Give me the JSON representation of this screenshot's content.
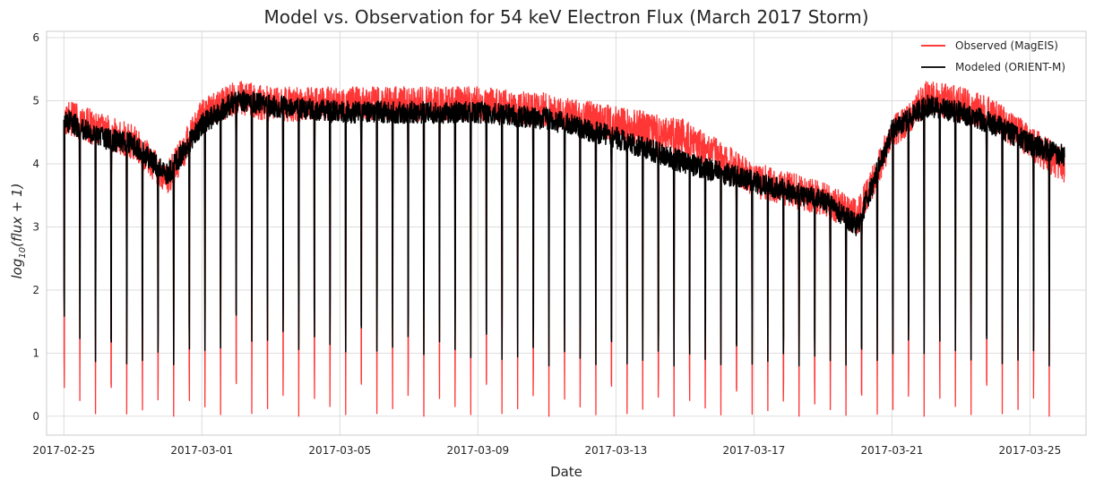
{
  "chart_data": {
    "type": "line",
    "title": "Model vs. Observation for 54 keV Electron Flux (March 2017 Storm)",
    "xlabel": "Date",
    "ylabel_prefix": "log",
    "ylabel_sub": "10",
    "ylabel_suffix": "(flux + 1)",
    "xlim": [
      "2017-02-24T12:00",
      "2017-03-26T15:00"
    ],
    "ylim": [
      -0.3,
      6.1
    ],
    "yticks": [
      0,
      1,
      2,
      3,
      4,
      5,
      6
    ],
    "xticks": [
      "2017-02-25",
      "2017-03-01",
      "2017-03-05",
      "2017-03-09",
      "2017-03-13",
      "2017-03-17",
      "2017-03-21",
      "2017-03-25"
    ],
    "grid": true,
    "legend_position": "top-right",
    "colors": {
      "observed": "#ff2020",
      "modeled": "#000000",
      "grid": "#d9d9d9",
      "frame": "#cccccc"
    },
    "series": [
      {
        "name": "Observed (MagEIS)",
        "key": "observed",
        "start": "2017-02-25",
        "end": "2017-03-26",
        "approx_orbital_dropouts": 64,
        "envelope": [
          [
            "2017-02-25",
            4.6,
            0.2
          ],
          [
            "2017-02-26",
            4.4,
            0.0
          ],
          [
            "2017-02-27",
            4.2,
            0.0
          ],
          [
            "2017-02-28",
            3.6,
            0.0
          ],
          [
            "2017-03-01",
            4.6,
            0.0
          ],
          [
            "2017-03-02",
            4.9,
            0.0
          ],
          [
            "2017-03-03",
            4.8,
            0.0
          ],
          [
            "2017-03-05",
            4.8,
            0.0
          ],
          [
            "2017-03-07",
            4.8,
            0.0
          ],
          [
            "2017-03-09",
            4.8,
            0.0
          ],
          [
            "2017-03-11",
            4.7,
            0.0
          ],
          [
            "2017-03-13",
            4.5,
            0.0
          ],
          [
            "2017-03-15",
            4.3,
            0.0
          ],
          [
            "2017-03-17",
            3.6,
            0.0
          ],
          [
            "2017-03-19",
            3.3,
            0.0
          ],
          [
            "2017-03-20",
            3.0,
            0.0
          ],
          [
            "2017-03-21",
            4.3,
            0.0
          ],
          [
            "2017-03-22",
            4.9,
            0.0
          ],
          [
            "2017-03-23",
            4.8,
            0.0
          ],
          [
            "2017-03-24",
            4.6,
            0.0
          ],
          [
            "2017-03-25",
            4.2,
            0.0
          ],
          [
            "2017-03-26",
            3.8,
            0.0
          ]
        ]
      },
      {
        "name": "Modeled (ORIENT-M)",
        "key": "modeled",
        "start": "2017-02-25",
        "end": "2017-03-26",
        "approx_orbital_dropouts": 64,
        "envelope": [
          [
            "2017-02-25",
            4.7,
            1.4
          ],
          [
            "2017-02-26",
            4.4,
            0.8
          ],
          [
            "2017-02-27",
            4.3,
            0.8
          ],
          [
            "2017-02-28",
            3.8,
            0.8
          ],
          [
            "2017-03-01",
            4.6,
            0.9
          ],
          [
            "2017-03-02",
            5.0,
            1.2
          ],
          [
            "2017-03-03",
            4.9,
            1.1
          ],
          [
            "2017-03-05",
            4.8,
            1.0
          ],
          [
            "2017-03-07",
            4.8,
            1.0
          ],
          [
            "2017-03-09",
            4.8,
            0.9
          ],
          [
            "2017-03-11",
            4.7,
            0.8
          ],
          [
            "2017-03-13",
            4.4,
            0.8
          ],
          [
            "2017-03-15",
            4.0,
            0.8
          ],
          [
            "2017-03-17",
            3.7,
            0.8
          ],
          [
            "2017-03-19",
            3.4,
            0.8
          ],
          [
            "2017-03-20",
            3.0,
            0.8
          ],
          [
            "2017-03-21",
            4.5,
            0.9
          ],
          [
            "2017-03-22",
            4.9,
            1.0
          ],
          [
            "2017-03-23",
            4.8,
            0.9
          ],
          [
            "2017-03-24",
            4.6,
            0.8
          ],
          [
            "2017-03-25",
            4.3,
            0.8
          ],
          [
            "2017-03-26",
            4.1,
            0.8
          ]
        ]
      }
    ]
  }
}
